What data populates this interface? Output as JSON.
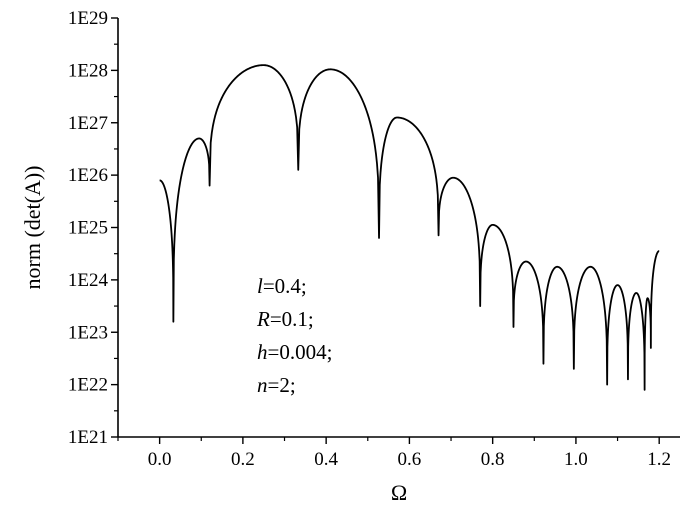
{
  "chart_data": {
    "type": "line",
    "xlabel": "Ω",
    "ylabel": "norm (det(A))",
    "xlim": [
      -0.1,
      1.25
    ],
    "ylim_log10": [
      21,
      29
    ],
    "y_scale": "log",
    "grid": false,
    "x_ticks": [
      {
        "value": 0.0,
        "label": "0.0"
      },
      {
        "value": 0.2,
        "label": "0.2"
      },
      {
        "value": 0.4,
        "label": "0.4"
      },
      {
        "value": 0.6,
        "label": "0.6"
      },
      {
        "value": 0.8,
        "label": "0.8"
      },
      {
        "value": 1.0,
        "label": "1.0"
      },
      {
        "value": 1.2,
        "label": "1.2"
      }
    ],
    "y_ticks": [
      {
        "exp": 21,
        "label": "1E21"
      },
      {
        "exp": 22,
        "label": "1E22"
      },
      {
        "exp": 23,
        "label": "1E23"
      },
      {
        "exp": 24,
        "label": "1E24"
      },
      {
        "exp": 25,
        "label": "1E25"
      },
      {
        "exp": 26,
        "label": "1E26"
      },
      {
        "exp": 27,
        "label": "1E27"
      },
      {
        "exp": 28,
        "label": "1E28"
      },
      {
        "exp": 29,
        "label": "1E29"
      }
    ],
    "annotations": [
      {
        "var": "l",
        "rest": "=0.4;"
      },
      {
        "var": "R",
        "rest": "=0.1;"
      },
      {
        "var": "h",
        "rest": "=0.004;"
      },
      {
        "var": "n",
        "rest": "=2;"
      }
    ],
    "series": [
      {
        "line_color": "#000000",
        "lobes": [
          {
            "start": 0.0,
            "end": 0.033,
            "peak_x": 0.0,
            "peak_log10": 25.9,
            "start_log10": 25.9,
            "end_log10": 23.2
          },
          {
            "start": 0.033,
            "end": 0.12,
            "peak_x": 0.095,
            "peak_log10": 26.7,
            "start_log10": 23.2,
            "end_log10": 25.8
          },
          {
            "start": 0.12,
            "end": 0.333,
            "peak_x": 0.25,
            "peak_log10": 28.1,
            "start_log10": 25.8,
            "end_log10": 26.1
          },
          {
            "start": 0.333,
            "end": 0.527,
            "peak_x": 0.41,
            "peak_log10": 28.02,
            "start_log10": 26.1,
            "end_log10": 24.8
          },
          {
            "start": 0.527,
            "end": 0.67,
            "peak_x": 0.57,
            "peak_log10": 27.1,
            "start_log10": 24.8,
            "end_log10": 24.85
          },
          {
            "start": 0.67,
            "end": 0.77,
            "peak_x": 0.705,
            "peak_log10": 25.95,
            "start_log10": 24.85,
            "end_log10": 23.5
          },
          {
            "start": 0.77,
            "end": 0.85,
            "peak_x": 0.8,
            "peak_log10": 25.05,
            "start_log10": 23.5,
            "end_log10": 23.1
          },
          {
            "start": 0.85,
            "end": 0.922,
            "peak_x": 0.88,
            "peak_log10": 24.35,
            "start_log10": 23.1,
            "end_log10": 22.4
          },
          {
            "start": 0.922,
            "end": 0.995,
            "peak_x": 0.955,
            "peak_log10": 24.25,
            "start_log10": 22.4,
            "end_log10": 22.3
          },
          {
            "start": 0.995,
            "end": 1.075,
            "peak_x": 1.035,
            "peak_log10": 24.25,
            "start_log10": 22.3,
            "end_log10": 22.0
          },
          {
            "start": 1.075,
            "end": 1.125,
            "peak_x": 1.1,
            "peak_log10": 23.9,
            "start_log10": 22.0,
            "end_log10": 22.1
          },
          {
            "start": 1.125,
            "end": 1.165,
            "peak_x": 1.145,
            "peak_log10": 23.75,
            "start_log10": 22.1,
            "end_log10": 21.9
          },
          {
            "start": 1.165,
            "end": 1.18,
            "peak_x": 1.172,
            "peak_log10": 23.65,
            "start_log10": 21.9,
            "end_log10": 22.7
          },
          {
            "start": 1.18,
            "end": 1.2,
            "peak_x": 1.2,
            "peak_log10": 24.55,
            "start_log10": 22.7,
            "end_log10": 24.55
          }
        ]
      }
    ]
  }
}
